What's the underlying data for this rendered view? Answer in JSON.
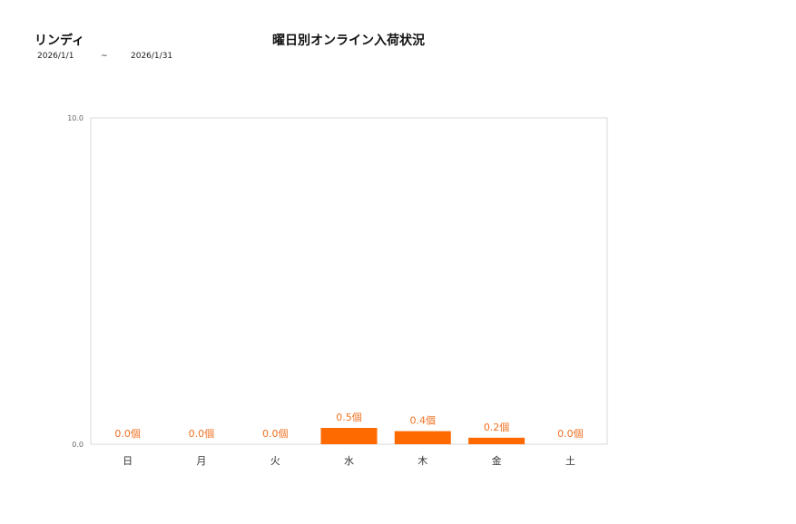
{
  "header": {
    "store": "リンディ",
    "date_from": "2026/1/1",
    "separator": "~",
    "date_to": "2026/1/31"
  },
  "chart_data": {
    "type": "bar",
    "title": "曜日別オンライン入荷状況",
    "categories": [
      "日",
      "月",
      "火",
      "水",
      "木",
      "金",
      "土"
    ],
    "values": [
      0.0,
      0.0,
      0.0,
      0.5,
      0.4,
      0.2,
      0.0
    ],
    "data_labels": [
      "0.0個",
      "0.0個",
      "0.0個",
      "0.5個",
      "0.4個",
      "0.2個",
      "0.0個"
    ],
    "ylim": [
      0,
      10
    ],
    "yticks": [
      "0.0",
      "10.0"
    ],
    "grid": false,
    "bar_color": "#ff6a00",
    "label_color": "#f07020"
  }
}
